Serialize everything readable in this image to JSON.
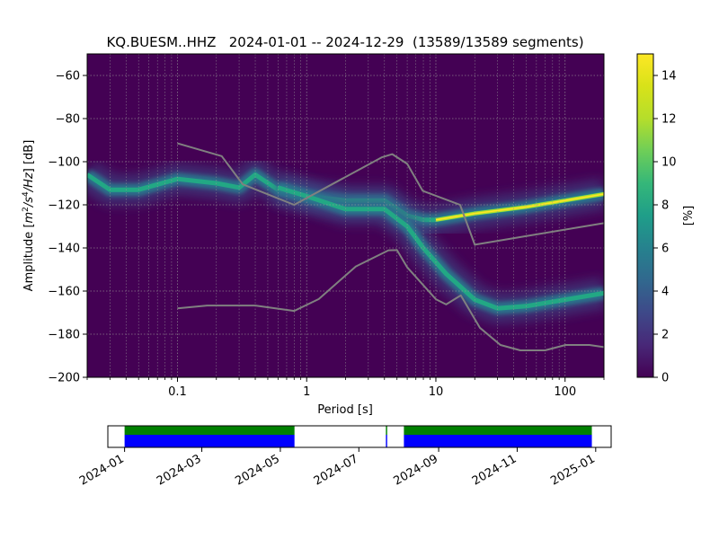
{
  "title": "KQ.BUESM..HHZ   2024-01-01 -- 2024-12-29  (13589/13589 segments)",
  "chart_data": [
    {
      "type": "heatmap",
      "title": "KQ.BUESM..HHZ   2024-01-01 -- 2024-12-29  (13589/13589 segments)",
      "xlabel": "Period [s]",
      "ylabel": "Amplitude [m²/s⁴/Hz] [dB]",
      "xscale": "log",
      "xlim": [
        0.02,
        200
      ],
      "ylim": [
        -200,
        -50
      ],
      "xticks": [
        0.1,
        1,
        10,
        100
      ],
      "xtick_labels": [
        "0.1",
        "1",
        "10",
        "100"
      ],
      "yticks": [
        -60,
        -80,
        -100,
        -120,
        -140,
        -160,
        -180,
        -200
      ],
      "ytick_labels": [
        "−60",
        "−80",
        "−100",
        "−120",
        "−140",
        "−160",
        "−180",
        "−200"
      ],
      "grid": true,
      "colorbar": {
        "label": "[%]",
        "range": [
          0,
          15
        ],
        "ticks": [
          0,
          2,
          4,
          6,
          8,
          10,
          12,
          14
        ],
        "colormap": "viridis"
      },
      "noise_models": {
        "upper": {
          "period": [
            0.1,
            0.22,
            0.32,
            0.8,
            3.8,
            4.6,
            6,
            7.9,
            15.4,
            20,
            354
          ],
          "db": [
            -91.5,
            -97.4,
            -110.5,
            -120,
            -98,
            -96.5,
            -101,
            -113.5,
            -120,
            -138.5,
            -126
          ]
        },
        "lower": {
          "period": [
            0.1,
            0.17,
            0.4,
            0.8,
            1.24,
            2.4,
            4.3,
            5,
            6,
            10,
            12,
            15.6,
            21.9,
            31.6,
            45,
            70,
            101,
            154,
            200
          ],
          "db": [
            -168,
            -166.7,
            -166.7,
            -169.2,
            -163.7,
            -148.6,
            -141.1,
            -141,
            -149,
            -163.8,
            -166.2,
            -162,
            -177,
            -185,
            -187.5,
            -187.5,
            -185,
            -185,
            -186
          ]
        }
      },
      "density_ridges": [
        {
          "name": "",
          "period": [
            0.02,
            0.03,
            0.05,
            0.1,
            0.2,
            0.3,
            0.4,
            0.6,
            1,
            2,
            4,
            6,
            8,
            10,
            20,
            50,
            100,
            200
          ],
          "db": [
            -106,
            -113,
            -113,
            -108,
            -110,
            -112,
            -106,
            -113,
            -116,
            -118,
            -118,
            -125,
            -127,
            -127,
            -124,
            -121,
            -118,
            -115
          ]
        },
        {
          "name": "",
          "period": [
            0.6,
            1,
            2,
            4,
            6,
            8,
            12,
            20,
            30,
            50,
            100,
            200
          ],
          "db": [
            -112,
            -116,
            -122,
            -122,
            -130,
            -140,
            -152,
            -164,
            -168,
            -167,
            -164,
            -161
          ]
        }
      ]
    },
    {
      "type": "timeline",
      "xlim": [
        "2023-12-19",
        "2025-01-13"
      ],
      "xtick_labels": [
        "2024-01",
        "2024-03",
        "2024-05",
        "2024-07",
        "2024-09",
        "2024-11",
        "2025-01"
      ],
      "coverage_intervals": [
        {
          "start": "2024-01-01",
          "end": "2024-05-12"
        },
        {
          "start": "2024-07-22",
          "end": "2024-07-23"
        },
        {
          "start": "2024-08-05",
          "end": "2024-12-29"
        }
      ],
      "colors": {
        "data": "#0000ff",
        "psd": "#008000"
      }
    }
  ]
}
